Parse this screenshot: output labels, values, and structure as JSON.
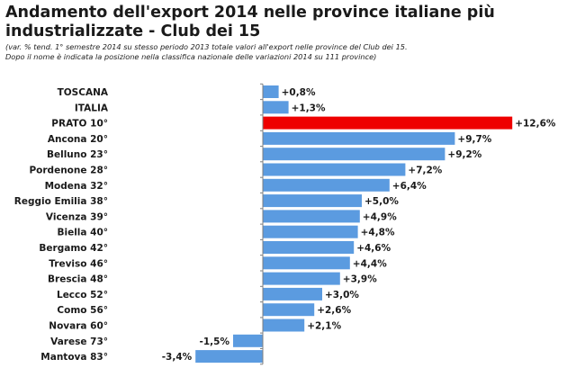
{
  "title": "Andamento dell'export 2014 nelle province italiane più\nindustrializzate  - Club dei 15",
  "subtitle": "(var. % tend. 1° semestre 2014 su stesso periodo 2013 totale valori all'export nelle province del Club dei 15.\nDopo il nome è indicata la posizione nella classifica nazionale delle variazioni 2014 su 111 province)",
  "colors": {
    "bar": "#5b9be0",
    "highlight": "#ee0000",
    "axis": "#7f7f7f"
  },
  "chart_data": {
    "type": "bar",
    "orientation": "horizontal",
    "categories": [
      "TOSCANA",
      "ITALIA",
      "PRATO 10°",
      "Ancona 20°",
      "Belluno 23°",
      "Pordenone 28°",
      "Modena 32°",
      "Reggio Emilia 38°",
      "Vicenza 39°",
      "Biella 40°",
      "Bergamo 42°",
      "Treviso 46°",
      "Brescia 48°",
      "Lecco 52°",
      "Como 56°",
      "Novara 60°",
      "Varese 73°",
      "Mantova 83°"
    ],
    "values": [
      0.8,
      1.3,
      12.6,
      9.7,
      9.2,
      7.2,
      6.4,
      5.0,
      4.9,
      4.8,
      4.6,
      4.4,
      3.9,
      3.0,
      2.6,
      2.1,
      -1.5,
      -3.4
    ],
    "value_labels": [
      "+0,8%",
      "+1,3%",
      "+12,6%",
      "+9,7%",
      "+9,2%",
      "+7,2%",
      "+6,4%",
      "+5,0%",
      "+4,9%",
      "+4,8%",
      "+4,6%",
      "+4,4%",
      "+3,9%",
      "+3,0%",
      "+2,6%",
      "+2,1%",
      "-1,5%",
      "-3,4%"
    ],
    "highlight_index": 2,
    "xlim": [
      -3.4,
      12.6
    ],
    "grid": false,
    "legend": "none"
  }
}
